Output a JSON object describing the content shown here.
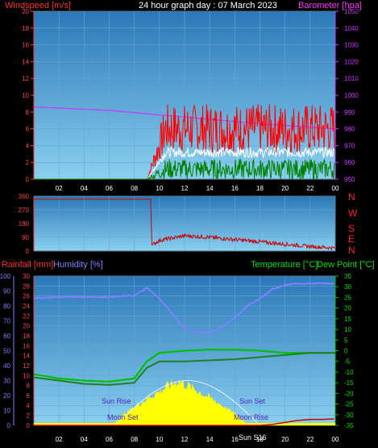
{
  "header": {
    "left_title": "Windspeed [m/s]",
    "center_title": "24 hour graph day : 07 March 2023",
    "right_title": "Barometer [hpa]"
  },
  "legend": {
    "rain": "Rainfall [mm]",
    "humidity": "Humidity [%]",
    "temperature": "Temperature [°C]",
    "dewpoint": "Dew Point [°C]"
  },
  "compass": [
    "N",
    "W",
    "S",
    "E",
    "N"
  ],
  "annotations": {
    "sun_rise": "Sun Rise",
    "sun_set": "Sun Set",
    "moon_set": "Moon Set",
    "moon_rise": "Moon Rise",
    "sun_set_time": "Sun S16"
  },
  "colors": {
    "windspeed": "#ff0000",
    "gust": "#ff0000",
    "average": "#008000",
    "barometer": "#cc33ff",
    "humidity": "#8080ff",
    "temperature": "#00c000",
    "dewpoint": "#208020",
    "rain": "#cc0000",
    "solar": "#ffff00",
    "panel_top": "#2a78b8",
    "panel_bottom": "#8ad0f0"
  },
  "chart_data": [
    {
      "type": "line",
      "name": "wind-barometer",
      "x_ticks": [
        "02",
        "04",
        "06",
        "08",
        "10",
        "12",
        "14",
        "16",
        "18",
        "20",
        "22",
        "00"
      ],
      "y_left_ticks": [
        "0",
        "2",
        "4",
        "6",
        "8",
        "10",
        "12",
        "14",
        "16",
        "18",
        "20"
      ],
      "y_left_range": [
        0,
        20
      ],
      "y_right_ticks": [
        "950",
        "960",
        "970",
        "980",
        "990",
        "1000",
        "1010",
        "1020",
        "1030",
        "1040",
        "1050"
      ],
      "y_right_range": [
        950,
        1050
      ],
      "barometer": {
        "hours": [
          0,
          6,
          12,
          18,
          24
        ],
        "values": [
          993,
          991,
          987,
          983,
          980
        ]
      },
      "gust": {
        "start_hour": 9,
        "end_hour": 24,
        "mean": 6.0
      },
      "average": {
        "start_hour": 9,
        "end_hour": 24,
        "mean": 3.2
      },
      "low": {
        "start_hour": 9,
        "end_hour": 24,
        "mean": 1.2
      }
    },
    {
      "type": "line",
      "name": "wind-direction",
      "y_ticks": [
        "0",
        "90",
        "180",
        "270",
        "360"
      ],
      "y_range": [
        0,
        360
      ],
      "direction": {
        "hours": [
          0,
          9.3,
          9.4,
          10,
          12,
          14,
          16,
          18,
          20,
          22,
          24
        ],
        "values": [
          340,
          340,
          40,
          70,
          100,
          90,
          75,
          60,
          45,
          30,
          20
        ]
      }
    },
    {
      "type": "line",
      "name": "temp-humidity-rain",
      "y_humidity_ticks": [
        "0",
        "10",
        "20",
        "30",
        "40",
        "50",
        "60",
        "70",
        "80",
        "90",
        "100"
      ],
      "y_rain_ticks": [
        "0",
        "2",
        "4",
        "6",
        "8",
        "10",
        "12",
        "14",
        "16",
        "18",
        "20",
        "22",
        "24",
        "26",
        "28",
        "30"
      ],
      "y_temp_ticks": [
        "35",
        "30",
        "25",
        "20",
        "15",
        "10",
        "5",
        "0",
        "-5",
        "-10",
        "-15",
        "-20",
        "-25",
        "-30",
        "-35"
      ],
      "humidity": {
        "hours": [
          0,
          2,
          4,
          6,
          8,
          9,
          10,
          11,
          12,
          13,
          14,
          15,
          16,
          17,
          18,
          19,
          20,
          21,
          22,
          24
        ],
        "values": [
          85,
          86,
          86,
          86,
          87,
          92,
          85,
          75,
          65,
          62,
          62,
          66,
          72,
          80,
          85,
          91,
          94,
          95,
          95,
          95
        ]
      },
      "temperature": {
        "hours": [
          0,
          2,
          4,
          6,
          8,
          9,
          10,
          12,
          14,
          16,
          18,
          20,
          22,
          24
        ],
        "values": [
          -11,
          -13,
          -14,
          -14.5,
          -13,
          -5,
          -1,
          0,
          0.5,
          0.5,
          0,
          -1,
          -1,
          -1
        ]
      },
      "dewpoint": {
        "hours": [
          0,
          2,
          4,
          6,
          8,
          9,
          10,
          12,
          14,
          16,
          18,
          20,
          22,
          24
        ],
        "values": [
          -12.5,
          -14,
          -15.5,
          -16,
          -15,
          -8,
          -5,
          -5,
          -4.5,
          -4,
          -3,
          -2,
          -1,
          -1
        ]
      },
      "rain": {
        "hours": [
          0,
          18,
          19,
          20,
          21,
          22,
          23,
          23.8,
          24
        ],
        "values": [
          0,
          0,
          0.2,
          0.6,
          1.0,
          1.2,
          1.2,
          1.3,
          1.3
        ]
      },
      "solar": {
        "start_hour": 6.3,
        "peak_hour": 11.5,
        "end_hour": 17.0
      },
      "sun_arc": {
        "start_hour": 6.5,
        "peak_hour": 12.3,
        "end_hour": 18.0
      }
    }
  ]
}
